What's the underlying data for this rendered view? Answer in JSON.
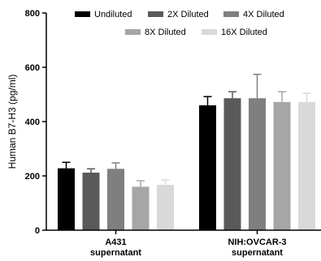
{
  "chart_data": {
    "type": "bar",
    "ylabel": "Human B7-H3 (pg/ml)",
    "xlabel": "",
    "ylim": [
      0,
      800
    ],
    "yticks": [
      0,
      200,
      400,
      600,
      800
    ],
    "grid": false,
    "legend_position": "top",
    "categories": [
      {
        "lines": [
          "A431",
          "supernatant"
        ]
      },
      {
        "lines": [
          "NIH:OVCAR-3",
          "supernatant"
        ]
      }
    ],
    "series": [
      {
        "name": "Undiluted",
        "color": "#000000",
        "values": [
          228,
          460
        ],
        "errors": [
          22,
          32
        ]
      },
      {
        "name": "2X Diluted",
        "color": "#5a5a5a",
        "values": [
          212,
          486
        ],
        "errors": [
          14,
          24
        ]
      },
      {
        "name": "4X Diluted",
        "color": "#7f7f7f",
        "values": [
          226,
          486
        ],
        "errors": [
          22,
          88
        ]
      },
      {
        "name": "8X Diluted",
        "color": "#a6a6a6",
        "values": [
          160,
          472
        ],
        "errors": [
          22,
          38
        ]
      },
      {
        "name": "16X Diluted",
        "color": "#d9d9d9",
        "values": [
          167,
          472
        ],
        "errors": [
          18,
          32
        ]
      }
    ]
  }
}
